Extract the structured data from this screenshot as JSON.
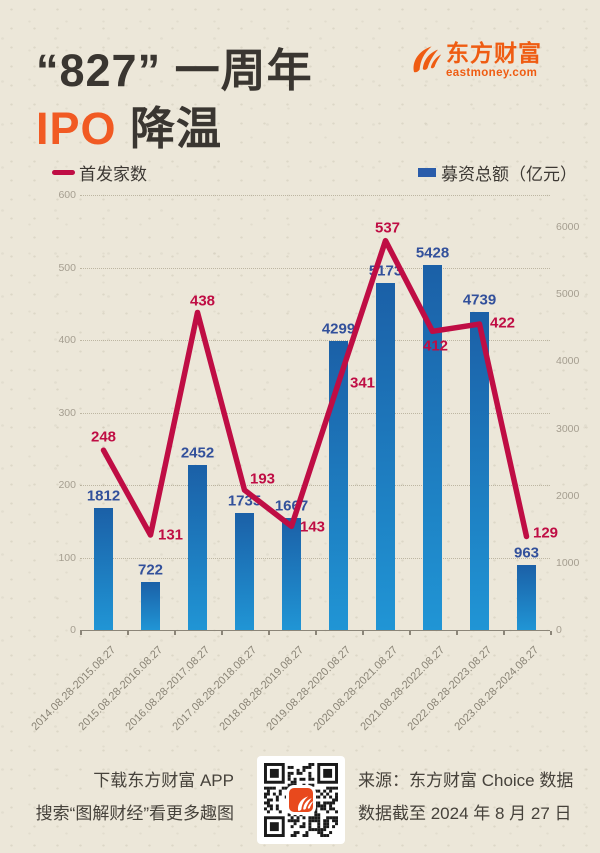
{
  "header": {
    "title_line1": "“827” 一周年",
    "title_line2_accent": "IPO",
    "title_line2_rest": " 降温",
    "logo": {
      "brand": "东方财富",
      "domain": "eastmoney.com"
    }
  },
  "legend": {
    "line_label": "首发家数",
    "bar_label": "募资总额（亿元）"
  },
  "chart_data": {
    "type": "combo-bar-line",
    "title": "“827” 一周年 IPO 降温",
    "categories": [
      "2014.08.28-2015.08.27",
      "2015.08.28-2016.08.27",
      "2016.08.28-2017.08.27",
      "2017.08.28-2018.08.27",
      "2018.08.28-2019.08.27",
      "2019.08.28-2020.08.27",
      "2020.08.28-2021.08.27",
      "2021.08.28-2022.08.27",
      "2022.08.28-2023.08.27",
      "2023.08.28-2024.08.27"
    ],
    "series": [
      {
        "name": "首发家数",
        "type": "line",
        "axis": "left",
        "color": "#bf0d44",
        "values": [
          248,
          131,
          438,
          193,
          143,
          341,
          537,
          412,
          422,
          129
        ]
      },
      {
        "name": "募资总额（亿元）",
        "type": "bar",
        "axis": "right",
        "color_top": "#1b60a7",
        "color_bottom": "#2095d5",
        "values": [
          1812,
          722,
          2452,
          1735,
          1667,
          4299,
          5173,
          5428,
          4739,
          963
        ]
      }
    ],
    "left_axis": {
      "min": 0,
      "max": 600,
      "step": 100
    },
    "right_axis": {
      "min": 0,
      "max": 6000,
      "step": 1000
    },
    "grid": "dotted-horizontal",
    "legend_position": "top",
    "data_labels": true
  },
  "footer": {
    "left_line1": "下载东方财富 APP",
    "left_line2": "搜索“图解财经”看更多趣图",
    "right_line1": "来源：东方财富 Choice 数据",
    "right_line2": "数据截至 2024 年 8 月 27 日"
  },
  "colors": {
    "background": "#ece7d9",
    "title": "#3a3631",
    "accent_orange": "#f15a23",
    "logo_orange": "#ef5c12",
    "line_red": "#bf0d44",
    "bar_blue": "#1f7fc2",
    "bar_label_blue": "#32509b",
    "axis_gray": "#a59e90"
  }
}
